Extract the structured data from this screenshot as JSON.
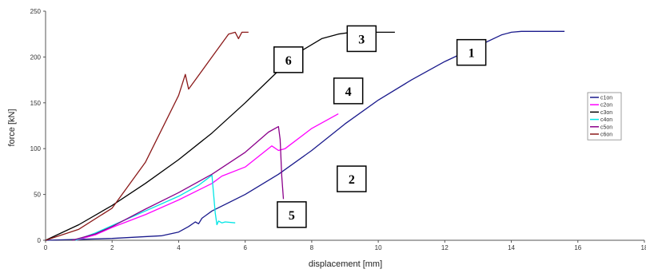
{
  "chart_data": {
    "type": "line",
    "title": "",
    "xlabel": "displacement [mm]",
    "ylabel": "force [kN]",
    "xlim": [
      0,
      18
    ],
    "ylim": [
      0,
      250
    ],
    "xticks": [
      "0",
      "2",
      "4",
      "6",
      "8",
      "10",
      "12",
      "14",
      "16",
      "18"
    ],
    "yticks": [
      "0",
      "50",
      "100",
      "150",
      "200",
      "250"
    ],
    "grid": false,
    "legend_position": "right",
    "series": [
      {
        "name": "c1on",
        "color": "#1a1a8c",
        "x": [
          0.0,
          2.0,
          3.5,
          4.0,
          4.3,
          4.5,
          4.6,
          4.7,
          5.0,
          6.0,
          7.0,
          8.0,
          9.0,
          10.0,
          11.0,
          12.0,
          13.0,
          13.7,
          14.0,
          14.3,
          15.0,
          15.6
        ],
        "y": [
          0,
          2,
          5,
          9,
          15,
          20,
          18,
          24,
          32,
          50,
          72,
          98,
          127,
          153,
          175,
          195,
          212,
          224,
          227,
          228,
          228,
          228
        ]
      },
      {
        "name": "c2on",
        "color": "#ff00ff",
        "x": [
          0.9,
          1.5,
          2.0,
          3.0,
          4.0,
          5.0,
          5.3,
          6.0,
          6.8,
          7.0,
          7.2,
          8.0,
          8.8
        ],
        "y": [
          0,
          6,
          14,
          28,
          44,
          62,
          70,
          80,
          103,
          98,
          100,
          122,
          138
        ]
      },
      {
        "name": "c3on",
        "color": "#000000",
        "x": [
          0.0,
          1.0,
          2.0,
          3.0,
          4.0,
          5.0,
          6.0,
          7.0,
          7.7,
          8.3,
          8.8,
          9.2,
          10.0,
          10.5
        ],
        "y": [
          0,
          17,
          38,
          62,
          88,
          117,
          150,
          185,
          207,
          220,
          225,
          227,
          227,
          227
        ]
      },
      {
        "name": "c4on",
        "color": "#00e5e5",
        "x": [
          0.9,
          1.5,
          2.0,
          3.0,
          4.0,
          4.6,
          5.0,
          5.1,
          5.15,
          5.2,
          5.3,
          5.4,
          5.7
        ],
        "y": [
          0,
          8,
          16,
          32,
          48,
          60,
          71,
          30,
          17,
          21,
          19,
          20,
          19
        ]
      },
      {
        "name": "c5on",
        "color": "#8b008b",
        "x": [
          0.8,
          1.5,
          2.0,
          3.0,
          4.0,
          5.0,
          6.0,
          6.7,
          7.0,
          7.05,
          7.1,
          7.15
        ],
        "y": [
          0,
          7,
          15,
          34,
          52,
          72,
          96,
          118,
          124,
          110,
          70,
          45
        ]
      },
      {
        "name": "c6on",
        "color": "#8b1a1a",
        "x": [
          0.0,
          1.0,
          2.0,
          3.0,
          4.0,
          4.2,
          4.3,
          4.5,
          5.0,
          5.5,
          5.7,
          5.8,
          5.9,
          6.1
        ],
        "y": [
          0,
          12,
          35,
          85,
          158,
          181,
          165,
          175,
          200,
          225,
          227,
          220,
          227,
          227
        ]
      }
    ],
    "annotations": [
      {
        "text": "1",
        "x": 12.8,
        "y": 205
      },
      {
        "text": "2",
        "x": 9.2,
        "y": 67
      },
      {
        "text": "3",
        "x": 9.5,
        "y": 220
      },
      {
        "text": "4",
        "x": 9.1,
        "y": 163
      },
      {
        "text": "5",
        "x": 7.4,
        "y": 28
      },
      {
        "text": "6",
        "x": 7.3,
        "y": 197
      }
    ]
  }
}
